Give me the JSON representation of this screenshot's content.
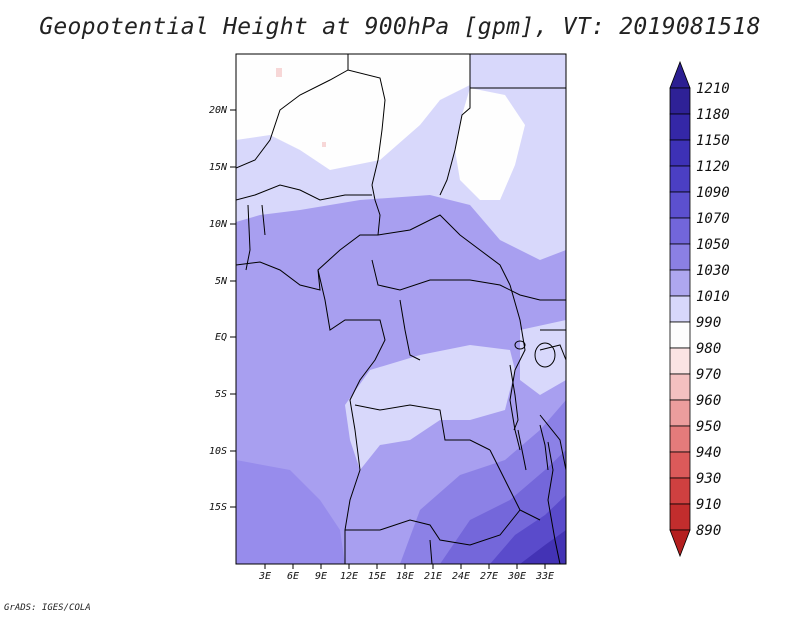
{
  "title": "Geopotential Height at 900hPa [gpm], VT: 2019081518",
  "credit": "GrADS: IGES/COLA",
  "map": {
    "lat_ticks": [
      "20N",
      "15N",
      "10N",
      "5N",
      "EQ",
      "5S",
      "10S",
      "15S"
    ],
    "lon_ticks": [
      "3E",
      "6E",
      "9E",
      "12E",
      "15E",
      "18E",
      "21E",
      "24E",
      "27E",
      "30E",
      "33E"
    ]
  },
  "colorbar": {
    "levels": [
      "1210",
      "1180",
      "1150",
      "1120",
      "1090",
      "1070",
      "1050",
      "1030",
      "1010",
      "990",
      "980",
      "970",
      "960",
      "950",
      "940",
      "930",
      "910",
      "890"
    ],
    "colors": {
      "lowest": "#b41f1f",
      "highest": "#2c1f92",
      "1030_1050": "#aea7ef",
      "1010_1030": "#d7d7fb",
      "990_1010": "#fdfdfd"
    }
  }
}
